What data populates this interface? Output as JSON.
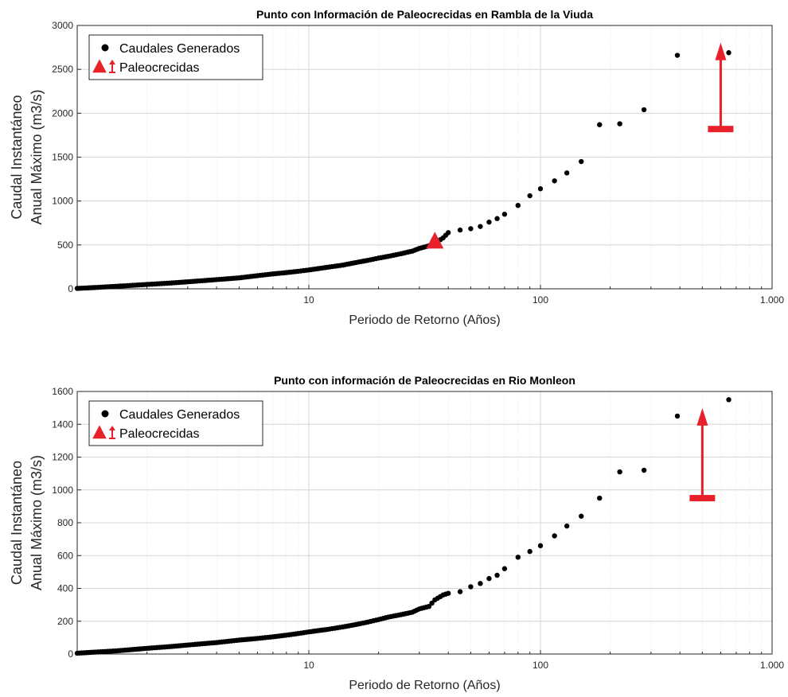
{
  "figure": {
    "legend_labels": {
      "generated": "Caudales Generados",
      "paleo": "Paleocrecidas"
    }
  },
  "chart_data": [
    {
      "type": "scatter",
      "title": "Punto con Información de Paleocrecidas en Rambla de la Viuda",
      "xlabel": "Periodo de Retorno (Años)",
      "ylabel_lines": [
        "Caudal Instantáneo",
        "Anual Máximo (m3/s)"
      ],
      "x_scale": "log",
      "xlim": [
        1,
        1000
      ],
      "ylim": [
        0,
        3000
      ],
      "x_ticks": [
        10,
        100,
        1000
      ],
      "x_tick_labels": [
        "10",
        "100",
        "1.000"
      ],
      "y_ticks": [
        0,
        500,
        1000,
        1500,
        2000,
        2500,
        3000
      ],
      "y_tick_labels": [
        "0",
        "500",
        "1000",
        "1500",
        "2000",
        "2500",
        "3000"
      ],
      "grid": true,
      "legend_position": "top-left",
      "series": [
        {
          "name": "Caudales Generados",
          "marker": "dot",
          "color": "#000000",
          "x": [
            1.0,
            1.2,
            1.5,
            2.0,
            2.5,
            3.0,
            4.0,
            5.0,
            6.0,
            7.0,
            8.0,
            9.0,
            10.0,
            12.0,
            14.0,
            16.0,
            18.0,
            20.0,
            22.0,
            25.0,
            28.0,
            30.0,
            33.0,
            35.0,
            38.0,
            40.0,
            45.0,
            50.0,
            55.0,
            60.0,
            65.0,
            70.0,
            80.0,
            90.0,
            100.0,
            115.0,
            130.0,
            150.0,
            180.0,
            220.0,
            280.0,
            390.0,
            650.0
          ],
          "y": [
            5,
            15,
            30,
            50,
            65,
            80,
            105,
            125,
            150,
            170,
            185,
            200,
            215,
            245,
            270,
            300,
            325,
            350,
            370,
            400,
            430,
            460,
            490,
            520,
            580,
            640,
            670,
            685,
            710,
            760,
            800,
            850,
            950,
            1060,
            1140,
            1230,
            1320,
            1450,
            1870,
            1880,
            2040,
            2660,
            2690
          ]
        },
        {
          "name": "Paleocrecidas",
          "marker": "triangle-arrow",
          "color": "#e8202a",
          "points": [
            {
              "x": 35,
              "y": 540,
              "kind": "point"
            },
            {
              "x": 600,
              "y_low": 1820,
              "y_high": 2750,
              "kind": "arrow"
            }
          ]
        }
      ]
    },
    {
      "type": "scatter",
      "title": "Punto con información de Paleocrecidas en Rio Monleon",
      "xlabel": "Periodo de Retorno (Años)",
      "ylabel_lines": [
        "Caudal Instantáneo",
        "Anual Máximo (m3/s)"
      ],
      "x_scale": "log",
      "xlim": [
        1,
        1000
      ],
      "ylim": [
        0,
        1600
      ],
      "x_ticks": [
        10,
        100,
        1000
      ],
      "x_tick_labels": [
        "10",
        "100",
        "1.000"
      ],
      "y_ticks": [
        0,
        200,
        400,
        600,
        800,
        1000,
        1200,
        1400,
        1600
      ],
      "y_tick_labels": [
        "0",
        "200",
        "400",
        "600",
        "800",
        "1000",
        "1200",
        "1400",
        "1600"
      ],
      "grid": true,
      "legend_position": "top-left",
      "series": [
        {
          "name": "Caudales Generados",
          "marker": "dot",
          "color": "#000000",
          "x": [
            1.0,
            1.2,
            1.5,
            2.0,
            2.5,
            3.0,
            4.0,
            5.0,
            6.0,
            7.0,
            8.0,
            9.0,
            10.0,
            12.0,
            14.0,
            16.0,
            18.0,
            20.0,
            22.0,
            25.0,
            28.0,
            30.0,
            33.0,
            35.0,
            38.0,
            40.0,
            45.0,
            50.0,
            55.0,
            60.0,
            65.0,
            70.0,
            80.0,
            90.0,
            100.0,
            115.0,
            130.0,
            150.0,
            180.0,
            220.0,
            280.0,
            390.0,
            650.0
          ],
          "y": [
            5,
            12,
            20,
            35,
            45,
            55,
            70,
            85,
            95,
            105,
            115,
            125,
            135,
            150,
            165,
            180,
            195,
            210,
            225,
            240,
            255,
            275,
            290,
            330,
            360,
            370,
            380,
            410,
            430,
            460,
            480,
            520,
            590,
            625,
            660,
            720,
            780,
            840,
            950,
            1110,
            1120,
            1450,
            1550
          ]
        },
        {
          "name": "Paleocrecidas",
          "marker": "triangle-arrow",
          "color": "#e8202a",
          "points": [
            {
              "x": 500,
              "y_low": 950,
              "y_high": 1470,
              "kind": "arrow"
            }
          ]
        }
      ]
    }
  ]
}
